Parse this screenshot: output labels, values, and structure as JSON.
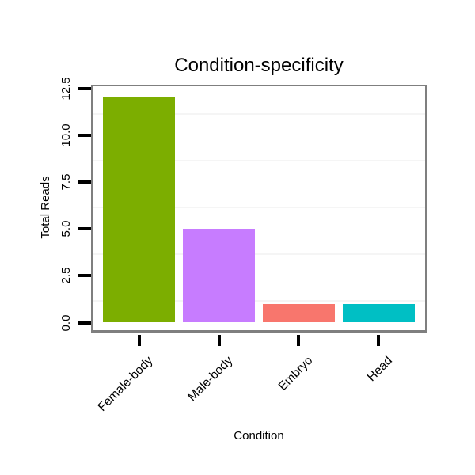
{
  "chart_data": {
    "type": "bar",
    "title": "Condition-specificity",
    "xlabel": "Condition",
    "ylabel": "Total Reads",
    "categories": [
      "Female-body",
      "Male-body",
      "Embryo",
      "Head"
    ],
    "values": [
      12.1,
      5.0,
      1.0,
      1.0
    ],
    "bar_colors": [
      "#7CAE00",
      "#C77CFF",
      "#F8766D",
      "#00BFC4"
    ],
    "ytick_labels": [
      "0.0",
      "2.5",
      "5.0",
      "7.5",
      "10.0",
      "12.5"
    ],
    "yticks": [
      0,
      2.5,
      5,
      7.5,
      10,
      12.5
    ],
    "ylim": [
      0,
      12.5
    ],
    "grid": "faint horizontal minor gridlines only",
    "legend": "none",
    "colors": {
      "panel_border": "#7f7f7f",
      "tick": "#000000",
      "grid_minor": "#f5f5f5",
      "text": "#000000",
      "background": "#ffffff"
    }
  }
}
